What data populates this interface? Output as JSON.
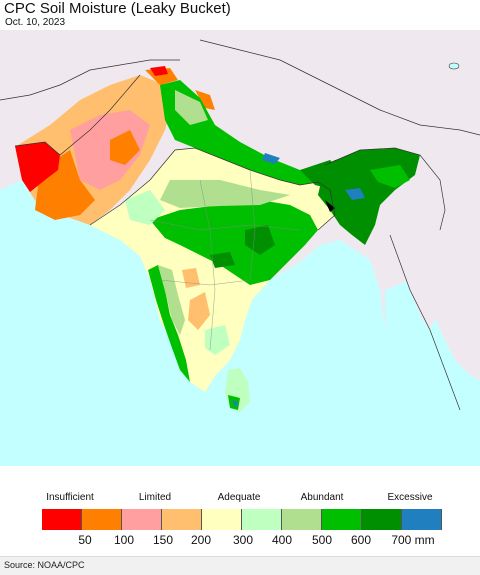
{
  "header": {
    "title": "CPC Soil Moisture (Leaky Bucket)",
    "date": "Oct. 10, 2023"
  },
  "legend": {
    "categories": [
      "Insufficient",
      "Limited",
      "Adequate",
      "Abundant",
      "Excessive"
    ],
    "colors": [
      "#ff0000",
      "#ff7f00",
      "#ff9f9f",
      "#ffbf6f",
      "#ffffbf",
      "#bfffbf",
      "#afdf8f",
      "#00bf00",
      "#008f00",
      "#1f7fbf"
    ],
    "ticks": [
      "50",
      "100",
      "150",
      "200",
      "300",
      "400",
      "500",
      "600",
      "700 mm"
    ]
  },
  "map": {
    "ocean_color": "#c3ffff",
    "land_outside_color": "#efe9ef"
  },
  "footer": {
    "source": "Source: NOAA/CPC"
  }
}
